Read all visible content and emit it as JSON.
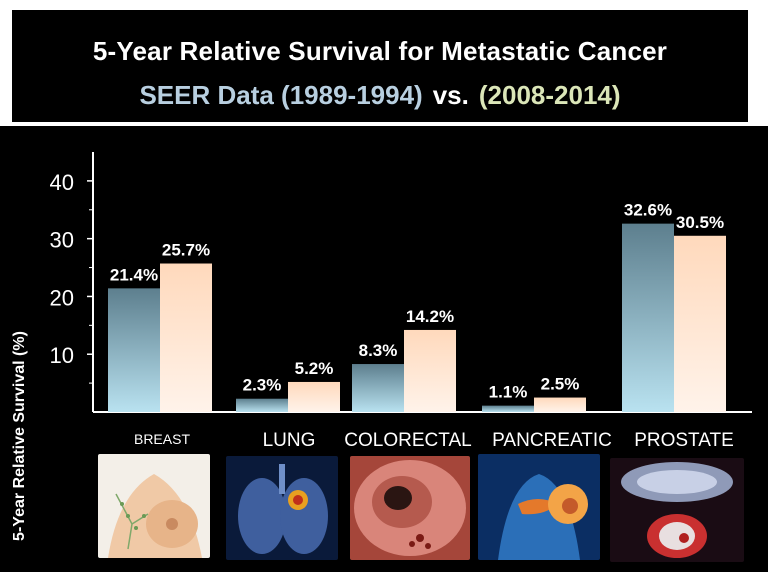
{
  "title": {
    "line1": "5-Year Relative  Survival for Metastatic Cancer",
    "line2_a": "SEER Data (1989-1994)",
    "line2_vs": "vs.",
    "line2_b": "(2008-2014)"
  },
  "colors": {
    "series_a_top": "#5d7f8e",
    "series_a_bottom": "#b9e2f0",
    "series_b_top": "#ffd9bc",
    "series_b_bottom": "#fff3ea",
    "background": "#000000",
    "text": "#ffffff"
  },
  "images": [
    {
      "category": "BREAST",
      "icon": "breast-anatomy-illustration"
    },
    {
      "category": "LUNG",
      "icon": "lung-tumor-illustration"
    },
    {
      "category": "COLORECTAL",
      "icon": "colon-endoscopy-photo"
    },
    {
      "category": "PANCREATIC",
      "icon": "pancreas-illustration"
    },
    {
      "category": "PROSTATE",
      "icon": "prostate-illustration"
    }
  ],
  "chart_data": {
    "type": "bar",
    "title": "5-Year Relative  Survival for Metastatic Cancer",
    "ylabel": "5-Year Relative  Survival (%)",
    "xlabel": "",
    "categories": [
      "BREAST",
      "LUNG",
      "COLORECTAL",
      "PANCREATIC",
      "PROSTATE"
    ],
    "series": [
      {
        "name": "SEER Data (1989-1994)",
        "values": [
          21.4,
          2.3,
          8.3,
          1.1,
          32.6
        ],
        "labels": [
          "21.4%",
          "2.3%",
          "8.3%",
          "1.1%",
          "32.6%"
        ]
      },
      {
        "name": "(2008-2014)",
        "values": [
          25.7,
          5.2,
          14.2,
          2.5,
          30.5
        ],
        "labels": [
          "25.7%",
          "5.2%",
          "14.2%",
          "2.5%",
          "30.5%"
        ]
      }
    ],
    "yticks": [
      10,
      20,
      30,
      40
    ],
    "ylim": [
      0,
      45
    ],
    "grid": false,
    "legend": "title"
  }
}
